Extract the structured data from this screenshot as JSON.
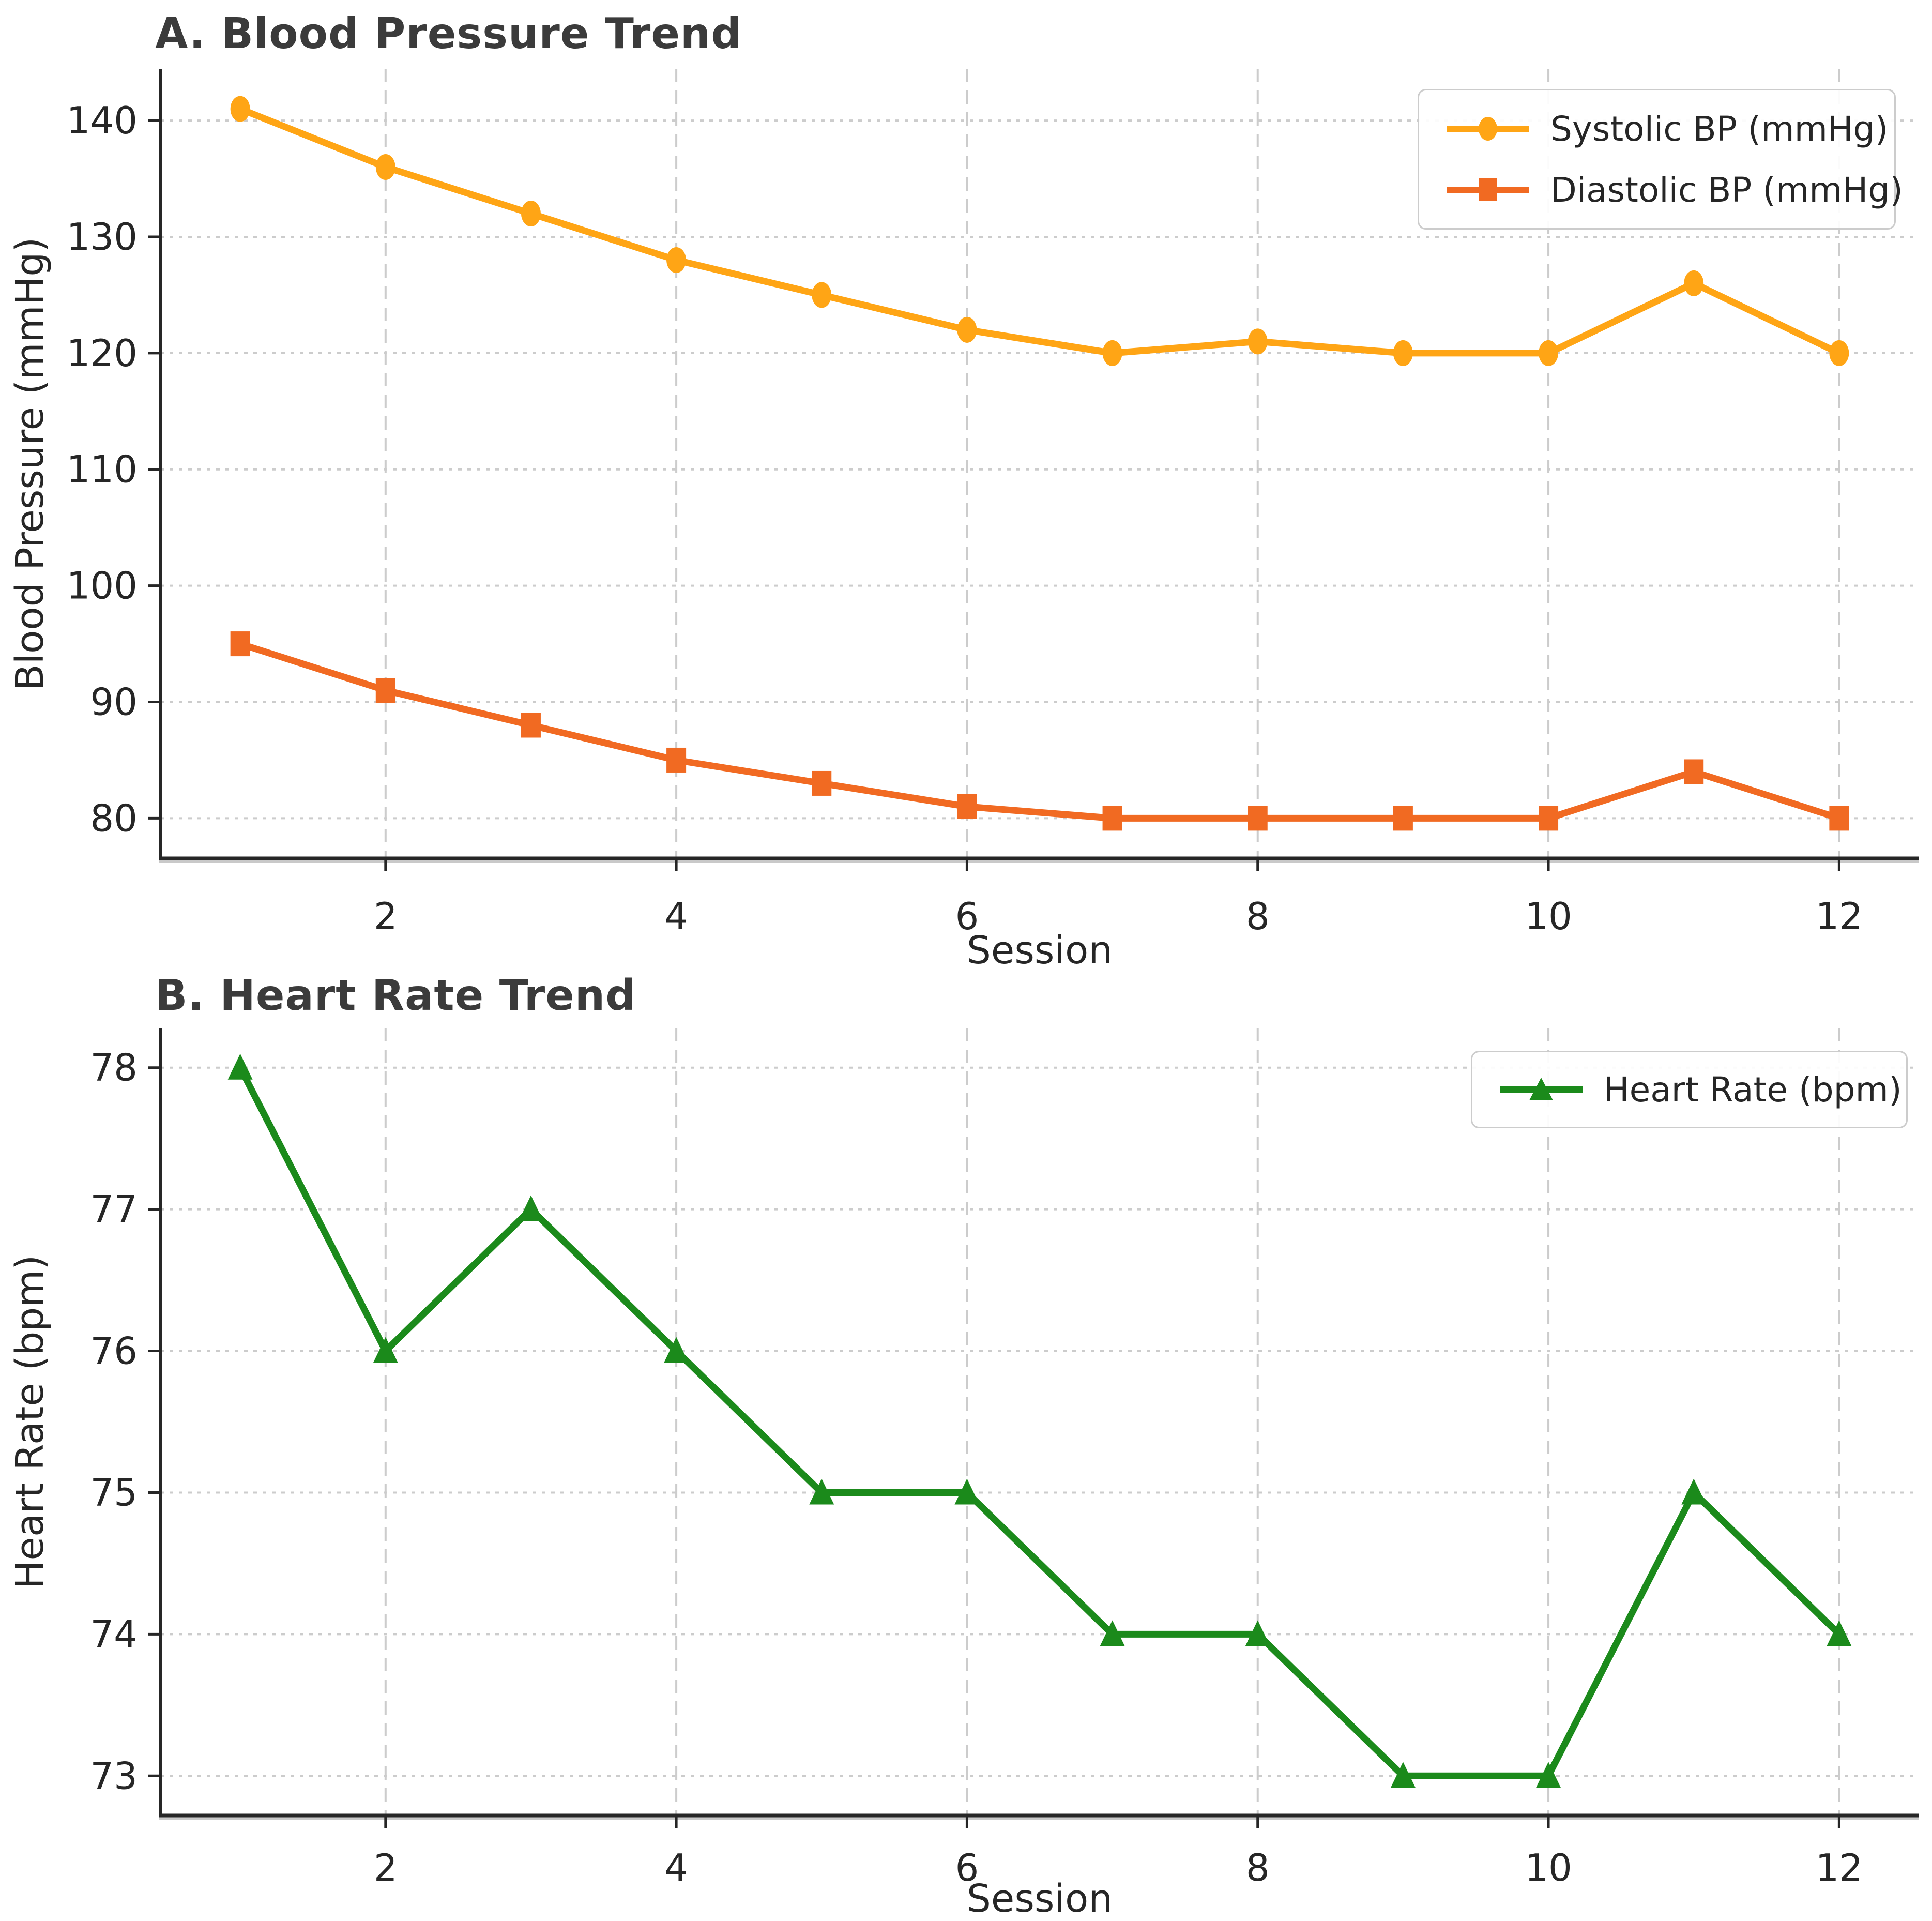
{
  "figure": {
    "background": "#ffffff",
    "text_color": "#262626",
    "title_color": "#3b3b3b",
    "grid_color": "#cccccc",
    "spine_color": "#262626"
  },
  "chart_data": [
    {
      "type": "line",
      "title": "A. Blood Pressure Trend",
      "xlabel": "Session",
      "ylabel": "Blood Pressure (mmHg)",
      "x": [
        1,
        2,
        3,
        4,
        5,
        6,
        7,
        8,
        9,
        10,
        11,
        12
      ],
      "xticks": [
        2,
        4,
        6,
        8,
        10,
        12
      ],
      "yticks": [
        140,
        130,
        120,
        110,
        100,
        90,
        80
      ],
      "xlim": [
        0.45,
        12.55
      ],
      "ylim": [
        76.55,
        144.45
      ],
      "grid": true,
      "legend_position": "upper right",
      "series": [
        {
          "name": "Systolic BP (mmHg)",
          "color": "#FFA515",
          "marker": "circle",
          "values": [
            141,
            136,
            132,
            128,
            125,
            122,
            120,
            121,
            120,
            120,
            126,
            120
          ]
        },
        {
          "name": "Diastolic BP (mmHg)",
          "color": "#F16A22",
          "marker": "square",
          "values": [
            95,
            91,
            88,
            85,
            83,
            81,
            80,
            80,
            80,
            80,
            84,
            80
          ]
        }
      ]
    },
    {
      "type": "line",
      "title": "B. Heart Rate Trend",
      "xlabel": "Session",
      "ylabel": "Heart Rate (bpm)",
      "x": [
        1,
        2,
        3,
        4,
        5,
        6,
        7,
        8,
        9,
        10,
        11,
        12
      ],
      "xticks": [
        2,
        4,
        6,
        8,
        10,
        12
      ],
      "yticks": [
        78,
        77,
        76,
        75,
        74,
        73
      ],
      "xlim": [
        0.45,
        12.55
      ],
      "ylim": [
        72.72,
        78.28
      ],
      "grid": true,
      "legend_position": "upper right",
      "series": [
        {
          "name": "Heart Rate (bpm)",
          "color": "#1B8A1B",
          "marker": "triangle",
          "values": [
            78,
            76,
            77,
            76,
            75,
            75,
            74,
            74,
            73,
            73,
            75,
            74
          ]
        }
      ]
    }
  ]
}
